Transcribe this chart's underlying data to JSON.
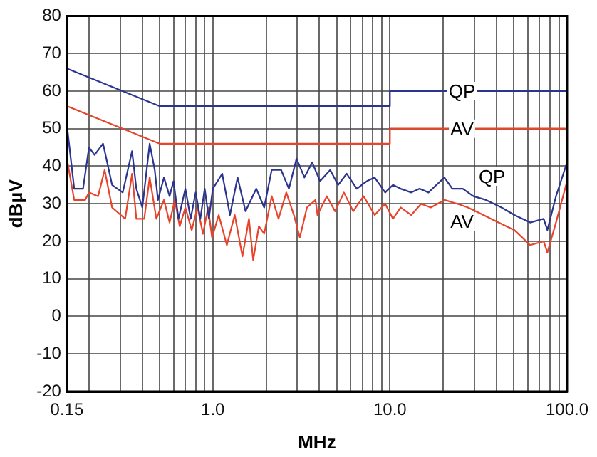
{
  "chart_data": {
    "type": "line",
    "xlabel": "MHz",
    "ylabel": "dBμV",
    "log": "x",
    "grid": true,
    "marker": "none",
    "line_style": "solid",
    "xlim": [
      0.15,
      100
    ],
    "xticks": [
      {
        "value": 0.15,
        "label": "0.15"
      },
      {
        "value": 0.2,
        "label": null
      },
      {
        "value": 0.3,
        "label": null
      },
      {
        "value": 0.4,
        "label": null
      },
      {
        "value": 0.5,
        "label": null
      },
      {
        "value": 0.6,
        "label": null
      },
      {
        "value": 0.7,
        "label": null
      },
      {
        "value": 0.8,
        "label": null
      },
      {
        "value": 0.9,
        "label": null
      },
      {
        "value": 1,
        "label": "1.0"
      },
      {
        "value": 2,
        "label": null
      },
      {
        "value": 3,
        "label": null
      },
      {
        "value": 4,
        "label": null
      },
      {
        "value": 5,
        "label": null
      },
      {
        "value": 6,
        "label": null
      },
      {
        "value": 7,
        "label": null
      },
      {
        "value": 8,
        "label": null
      },
      {
        "value": 9,
        "label": null
      },
      {
        "value": 10,
        "label": "10.0"
      },
      {
        "value": 20,
        "label": null
      },
      {
        "value": 30,
        "label": null
      },
      {
        "value": 40,
        "label": null
      },
      {
        "value": 50,
        "label": null
      },
      {
        "value": 60,
        "label": null
      },
      {
        "value": 70,
        "label": null
      },
      {
        "value": 80,
        "label": null
      },
      {
        "value": 90,
        "label": null
      },
      {
        "value": 100,
        "label": "100.0"
      }
    ],
    "ylim": [
      -20,
      80
    ],
    "yticks": [
      -20,
      -10,
      0,
      10,
      20,
      30,
      40,
      50,
      60,
      70,
      80
    ],
    "series": [
      {
        "name": "QP",
        "color": "#2b3590",
        "x": [
          0.15,
          0.5,
          10,
          10,
          100
        ],
        "values": [
          66,
          56,
          56,
          60,
          60
        ]
      },
      {
        "name": "AV",
        "color": "#e8432b",
        "x": [
          0.15,
          0.5,
          10,
          10,
          100
        ],
        "values": [
          56,
          46,
          46,
          50,
          50
        ]
      },
      {
        "name": "QP",
        "color": "#2b3590",
        "x": [
          0.15,
          0.165,
          0.185,
          0.2,
          0.215,
          0.24,
          0.27,
          0.31,
          0.35,
          0.37,
          0.4,
          0.44,
          0.47,
          0.49,
          0.53,
          0.57,
          0.6,
          0.64,
          0.7,
          0.75,
          0.8,
          0.85,
          0.9,
          0.95,
          1.0,
          1.13,
          1.25,
          1.38,
          1.53,
          1.76,
          1.95,
          2.15,
          2.43,
          2.69,
          2.97,
          3.29,
          3.64,
          4.03,
          4.6,
          5.1,
          5.7,
          6.5,
          7.4,
          8.2,
          9.4,
          10.4,
          11.5,
          13.2,
          14.7,
          16.5,
          18.3,
          20.3,
          22.5,
          25.8,
          29.6,
          34.9,
          42.7,
          50.4,
          61.9,
          73.8,
          77.4,
          86.6,
          100
        ],
        "values": [
          51,
          34,
          34,
          45,
          43,
          46,
          35,
          33,
          44,
          34,
          29,
          46,
          39,
          31,
          37,
          32,
          36,
          26,
          34,
          26,
          33,
          26,
          34,
          26,
          34,
          38,
          27,
          37,
          28,
          34,
          29,
          39,
          39,
          34,
          42,
          37,
          41,
          36,
          39,
          35,
          38,
          34,
          36,
          37,
          33,
          35,
          34,
          33,
          34,
          33,
          35,
          37,
          34,
          34,
          32,
          31,
          29,
          27,
          25,
          26,
          23,
          32,
          41
        ]
      },
      {
        "name": "AV",
        "color": "#e8432b",
        "x": [
          0.15,
          0.165,
          0.19,
          0.2,
          0.225,
          0.245,
          0.27,
          0.32,
          0.35,
          0.37,
          0.41,
          0.44,
          0.48,
          0.53,
          0.57,
          0.61,
          0.65,
          0.7,
          0.76,
          0.82,
          0.88,
          0.94,
          0.99,
          1.08,
          1.2,
          1.33,
          1.47,
          1.6,
          1.69,
          1.82,
          1.95,
          2.15,
          2.35,
          2.6,
          2.87,
          3.1,
          3.4,
          3.8,
          3.9,
          4.4,
          4.9,
          5.5,
          6.2,
          7.1,
          8.2,
          9.4,
          10.4,
          11.5,
          13.2,
          15,
          17,
          20.3,
          24,
          27.6,
          33.7,
          41,
          50.4,
          61.9,
          73.8,
          77.4,
          86.6,
          100
        ],
        "values": [
          42,
          31,
          31,
          33,
          32,
          39,
          29,
          26,
          38,
          26,
          26,
          37,
          26,
          31,
          25,
          31,
          24,
          29,
          23,
          29,
          22,
          29,
          21,
          27,
          19,
          27,
          16,
          26,
          15,
          24,
          22,
          32,
          26,
          33,
          27,
          21,
          29,
          31,
          27,
          32,
          28,
          33,
          28,
          32,
          27,
          30,
          26,
          29,
          27,
          30,
          29,
          31,
          30,
          29,
          27,
          25,
          23,
          19,
          20,
          17,
          25,
          36
        ]
      }
    ]
  }
}
